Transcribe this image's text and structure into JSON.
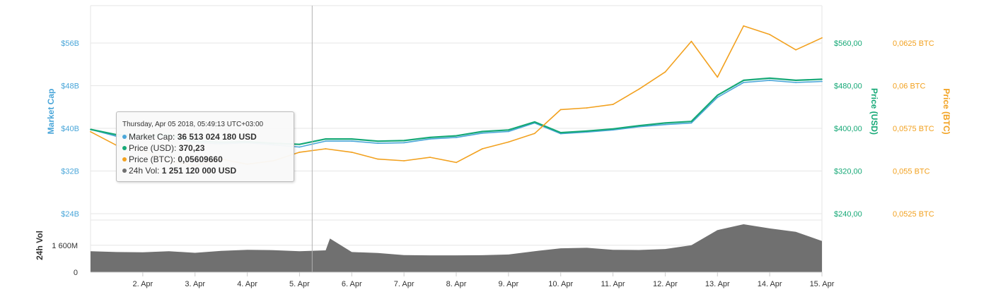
{
  "colors": {
    "market_cap": "#4aa6d9",
    "price_usd": "#15a876",
    "price_btc": "#f2a11f",
    "volume": "#707070",
    "grid": "#e6e6e6",
    "crosshair": "#b0b0b0"
  },
  "tooltip": {
    "title": "Thursday, Apr 05 2018, 05:49:13 UTC+03:00",
    "rows": [
      {
        "label": "Market Cap:",
        "value": "36 513 024 180 USD",
        "color": "#4aa6d9"
      },
      {
        "label": "Price (USD):",
        "value": "370,23",
        "color": "#15a876"
      },
      {
        "label": "Price (BTC):",
        "value": "0,05609660",
        "color": "#f2a11f"
      },
      {
        "label": "24h Vol:",
        "value": "1 251 120 000 USD",
        "color": "#707070"
      }
    ]
  },
  "chart_data": {
    "type": "line",
    "x_axis": {
      "tick_labels": [
        "2. Apr",
        "3. Apr",
        "4. Apr",
        "5. Apr",
        "6. Apr",
        "7. Apr",
        "8. Apr",
        "9. Apr",
        "10. Apr",
        "11. Apr",
        "12. Apr",
        "13. Apr",
        "14. Apr",
        "15. Apr"
      ],
      "range": [
        "2018-04-01",
        "2018-04-15"
      ]
    },
    "axes": {
      "market_cap": {
        "title": "Market Cap",
        "tick_labels": [
          "$24B",
          "$32B",
          "$40B",
          "$48B",
          "$56B"
        ],
        "ticks": [
          24,
          32,
          40,
          48,
          56
        ],
        "range": [
          24,
          64
        ],
        "unit": "billion USD",
        "side": "left"
      },
      "price_usd": {
        "title": "Price (USD)",
        "tick_labels": [
          "$240,00",
          "$320,00",
          "$400,00",
          "$480,00",
          "$560,00"
        ],
        "ticks": [
          240,
          320,
          400,
          480,
          560
        ],
        "range": [
          240,
          640
        ],
        "side": "right"
      },
      "price_btc": {
        "title": "Price (BTC)",
        "tick_labels": [
          "0,0525 BTC",
          "0,055 BTC",
          "0,0575 BTC",
          "0,06 BTC",
          "0,0625 BTC"
        ],
        "ticks": [
          0.0525,
          0.055,
          0.0575,
          0.06,
          0.0625
        ],
        "range": [
          0.0525,
          0.065
        ],
        "side": "right"
      },
      "volume": {
        "title": "24h Vol",
        "tick_labels": [
          "0",
          "1 600M"
        ],
        "ticks": [
          0,
          1600
        ],
        "range": [
          0,
          3100
        ],
        "unit": "million USD",
        "side": "left"
      }
    },
    "grid": true,
    "legend": "none",
    "crosshair_date": "2018-04-05T05:49",
    "series": [
      {
        "name": "Market Cap",
        "axis": "market_cap",
        "x": [
          "2018-04-01",
          "2018-04-01T12:00",
          "2018-04-02",
          "2018-04-02T12:00",
          "2018-04-03",
          "2018-04-03T12:00",
          "2018-04-04",
          "2018-04-04T12:00",
          "2018-04-05",
          "2018-04-05T12:00",
          "2018-04-06",
          "2018-04-06T12:00",
          "2018-04-07",
          "2018-04-07T12:00",
          "2018-04-08",
          "2018-04-08T12:00",
          "2018-04-09",
          "2018-04-09T12:00",
          "2018-04-10",
          "2018-04-10T12:00",
          "2018-04-11",
          "2018-04-11T12:00",
          "2018-04-12",
          "2018-04-12T12:00",
          "2018-04-13",
          "2018-04-13T12:00",
          "2018-04-14",
          "2018-04-14T12:00",
          "2018-04-15"
        ],
        "values": [
          39.8,
          38.5,
          38.3,
          38.6,
          37.3,
          37.1,
          37.3,
          36.9,
          36.5,
          37.6,
          37.6,
          37.2,
          37.3,
          38.0,
          38.3,
          39.1,
          39.4,
          41.0,
          39.0,
          39.3,
          39.7,
          40.3,
          40.7,
          41.0,
          45.8,
          48.6,
          49.0,
          48.6,
          48.8
        ]
      },
      {
        "name": "Price (USD)",
        "axis": "price_usd",
        "x": [
          "2018-04-01",
          "2018-04-01T12:00",
          "2018-04-02",
          "2018-04-02T12:00",
          "2018-04-03",
          "2018-04-03T12:00",
          "2018-04-04",
          "2018-04-04T12:00",
          "2018-04-05",
          "2018-04-05T12:00",
          "2018-04-06",
          "2018-04-06T12:00",
          "2018-04-07",
          "2018-04-07T12:00",
          "2018-04-08",
          "2018-04-08T12:00",
          "2018-04-09",
          "2018-04-09T12:00",
          "2018-04-10",
          "2018-04-10T12:00",
          "2018-04-11",
          "2018-04-11T12:00",
          "2018-04-12",
          "2018-04-12T12:00",
          "2018-04-13",
          "2018-04-13T12:00",
          "2018-04-14",
          "2018-04-14T12:00",
          "2018-04-15"
        ],
        "values": [
          398,
          388,
          386,
          388,
          376,
          374,
          375,
          372,
          370,
          380,
          380,
          376,
          377,
          383,
          386,
          394,
          397,
          412,
          392,
          395,
          399,
          405,
          410,
          413,
          462,
          490,
          494,
          490,
          492
        ]
      },
      {
        "name": "Price (BTC)",
        "axis": "price_btc",
        "x": [
          "2018-04-01",
          "2018-04-01T12:00",
          "2018-04-02",
          "2018-04-02T12:00",
          "2018-04-03",
          "2018-04-03T12:00",
          "2018-04-04",
          "2018-04-04T12:00",
          "2018-04-05",
          "2018-04-05T12:00",
          "2018-04-06",
          "2018-04-06T12:00",
          "2018-04-07",
          "2018-04-07T12:00",
          "2018-04-08",
          "2018-04-08T12:00",
          "2018-04-09",
          "2018-04-09T12:00",
          "2018-04-10",
          "2018-04-10T12:00",
          "2018-04-11",
          "2018-04-11T12:00",
          "2018-04-12",
          "2018-04-12T12:00",
          "2018-04-13",
          "2018-04-13T12:00",
          "2018-04-14",
          "2018-04-14T12:00",
          "2018-04-15"
        ],
        "values": [
          0.0573,
          0.0565,
          0.0562,
          0.0556,
          0.0553,
          0.0557,
          0.0554,
          0.0556,
          0.0561,
          0.0563,
          0.0561,
          0.0557,
          0.0556,
          0.0558,
          0.0555,
          0.0563,
          0.0567,
          0.0572,
          0.0586,
          0.0587,
          0.0589,
          0.0598,
          0.0608,
          0.0626,
          0.0605,
          0.0635,
          0.063,
          0.0621,
          0.0628
        ]
      },
      {
        "name": "24h Vol",
        "axis": "volume",
        "type": "area",
        "x": [
          "2018-04-01",
          "2018-04-01T12:00",
          "2018-04-02",
          "2018-04-02T12:00",
          "2018-04-03",
          "2018-04-03T12:00",
          "2018-04-04",
          "2018-04-04T12:00",
          "2018-04-05",
          "2018-04-05T12:00",
          "2018-04-05T14:00",
          "2018-04-06",
          "2018-04-06T12:00",
          "2018-04-07",
          "2018-04-07T12:00",
          "2018-04-08",
          "2018-04-08T12:00",
          "2018-04-09",
          "2018-04-09T12:00",
          "2018-04-10",
          "2018-04-10T12:00",
          "2018-04-11",
          "2018-04-11T12:00",
          "2018-04-12",
          "2018-04-12T12:00",
          "2018-04-13",
          "2018-04-13T12:00",
          "2018-04-14",
          "2018-04-14T12:00",
          "2018-04-15"
        ],
        "values": [
          1250,
          1200,
          1180,
          1250,
          1150,
          1270,
          1330,
          1310,
          1250,
          1300,
          2000,
          1200,
          1140,
          1020,
          1000,
          1000,
          1010,
          1050,
          1250,
          1420,
          1450,
          1330,
          1320,
          1380,
          1600,
          2500,
          2850,
          2600,
          2400,
          1850
        ]
      }
    ]
  }
}
